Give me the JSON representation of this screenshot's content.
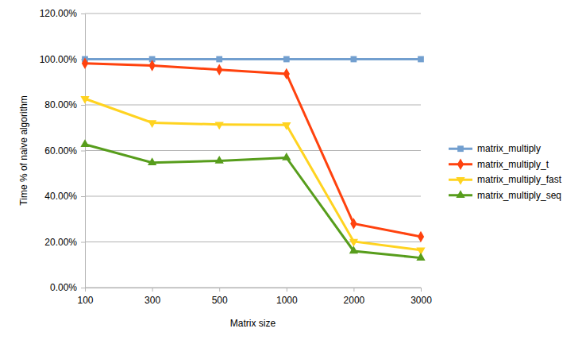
{
  "chart_data": {
    "type": "line",
    "x_label": "Matrix size",
    "y_label": "Time % of naive algorithm",
    "categories": [
      "100",
      "300",
      "500",
      "1000",
      "2000",
      "3000"
    ],
    "series": [
      {
        "name": "matrix_multiply",
        "color": "#729fcf",
        "marker": "square",
        "line_style": "solid",
        "values": [
          100,
          100,
          100,
          100,
          100,
          100
        ]
      },
      {
        "name": "matrix_multiply_t",
        "color": "#ff420e",
        "marker": "diamond",
        "line_style": "solid",
        "values": [
          98.2,
          97.2,
          95.4,
          93.6,
          28.0,
          22.3
        ]
      },
      {
        "name": "matrix_multiply_fast",
        "color": "#ffd320",
        "marker": "triangle-down",
        "line_style": "solid",
        "values": [
          82.7,
          72.2,
          71.4,
          71.2,
          20.2,
          16.4
        ]
      },
      {
        "name": "matrix_multiply_seq",
        "color": "#579d1c",
        "marker": "triangle",
        "line_style": "solid",
        "values": [
          62.7,
          54.7,
          55.5,
          56.9,
          16.0,
          13.0
        ]
      }
    ],
    "ylim": [
      0,
      120
    ],
    "yticks": [
      {
        "value": 0,
        "label": "0.00%"
      },
      {
        "value": 20,
        "label": "20.00%"
      },
      {
        "value": 40,
        "label": "40.00%"
      },
      {
        "value": 60,
        "label": "60.00%"
      },
      {
        "value": 80,
        "label": "80.00%"
      },
      {
        "value": 100,
        "label": "100.00%"
      },
      {
        "value": 120,
        "label": "120.00%"
      }
    ],
    "grid": true,
    "legend": "right"
  }
}
